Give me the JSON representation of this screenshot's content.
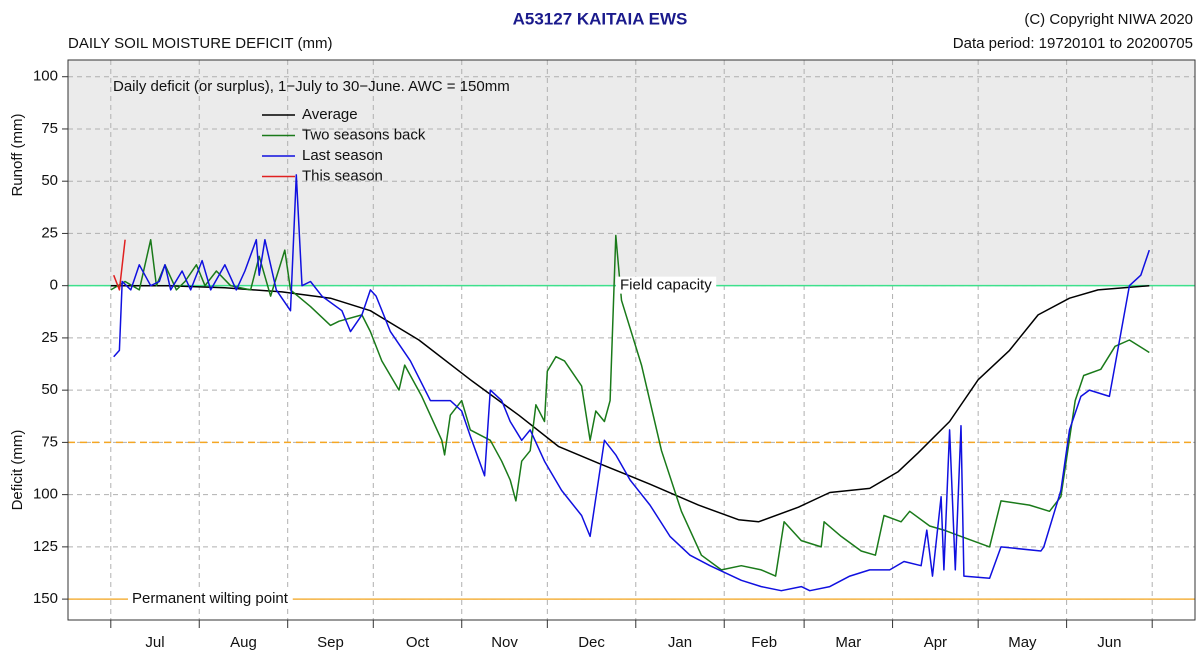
{
  "chart_data": {
    "type": "line",
    "title": "A53127  KAITAIA EWS",
    "subtitle": "DAILY SOIL MOISTURE DEFICIT (mm)",
    "copyright": "(C) Copyright NIWA  2020",
    "data_period": "Data period:  19720101  to  20200705",
    "note": "Daily deficit (or surplus), 1−July to 30−June.  AWC = 150mm",
    "y_label_top": "Runoff (mm)",
    "y_label_bottom": "Deficit (mm)",
    "xlim": [
      -15,
      380
    ],
    "xticks": [
      0,
      31,
      62,
      92,
      123,
      153,
      184,
      215,
      243,
      274,
      304,
      335,
      365
    ],
    "months": [
      "Jul",
      "Aug",
      "Sep",
      "Oct",
      "Nov",
      "Dec",
      "Jan",
      "Feb",
      "Mar",
      "Apr",
      "May",
      "Jun"
    ],
    "ylim": [
      -160,
      108
    ],
    "yticks": [
      100,
      75,
      50,
      25,
      0,
      {
        "value": -25,
        "label": "25"
      },
      {
        "value": -50,
        "label": "50"
      },
      {
        "value": -75,
        "label": "75"
      },
      {
        "value": -100,
        "label": "100"
      },
      {
        "value": -125,
        "label": "125"
      },
      {
        "value": -150,
        "label": "150"
      }
    ],
    "grid": true,
    "runoff_color": "#ebebeb",
    "reference_lines": [
      {
        "value": 0,
        "label": "Field capacity",
        "color": "#3de08c",
        "style": "solid"
      },
      {
        "value": -75,
        "color": "#f5a623",
        "style": "dashed"
      },
      {
        "value": -150,
        "label": "Permanent wilting point",
        "color": "#f5b342",
        "style": "solid"
      }
    ],
    "series": [
      {
        "name": "Average",
        "color": "#000000",
        "x": [
          0,
          20,
          40,
          60,
          77,
          91,
          108,
          126,
          143,
          157,
          171,
          189,
          206,
          220,
          227,
          241,
          252,
          266,
          276,
          283,
          294,
          304,
          315,
          325,
          336,
          346,
          364
        ],
        "values": [
          0,
          0,
          -1,
          -3,
          -6,
          -12,
          -26,
          -45,
          -62,
          -77,
          -85,
          -95,
          -105,
          -112,
          -113,
          -106,
          -99,
          -97,
          -89,
          -80,
          -65,
          -45,
          -31,
          -14,
          -6,
          -2,
          0
        ]
      },
      {
        "name": "Two seasons back",
        "color": "#1a7a1a",
        "x": [
          0,
          5,
          10,
          14,
          16,
          19,
          23,
          26,
          30,
          33,
          37,
          42,
          49,
          52,
          56,
          61,
          63,
          70,
          77,
          80,
          88,
          91,
          95,
          101,
          103,
          109,
          116,
          117,
          119,
          123,
          126,
          133,
          137,
          140,
          142,
          144,
          147,
          149,
          152,
          153,
          156,
          159,
          165,
          168,
          170,
          173,
          175,
          177,
          179,
          186,
          193,
          200,
          207,
          214,
          221,
          228,
          233,
          236,
          242,
          249,
          250,
          256,
          263,
          268,
          271,
          277,
          280,
          287,
          292,
          298,
          308,
          312,
          322,
          329,
          333,
          338,
          341,
          347,
          352,
          357,
          364
        ],
        "values": [
          -2,
          2,
          -2,
          22,
          0,
          10,
          -2,
          2,
          10,
          0,
          7,
          0,
          -2,
          14,
          -5,
          17,
          -2,
          -10,
          -19,
          -17,
          -14,
          -22,
          -36,
          -50,
          -38,
          -53,
          -74,
          -81,
          -62,
          -55,
          -69,
          -74,
          -84,
          -93,
          -103,
          -84,
          -79,
          -57,
          -65,
          -41,
          -34,
          -36,
          -48,
          -74,
          -60,
          -65,
          -55,
          24,
          -7,
          -38,
          -79,
          -108,
          -129,
          -136,
          -134,
          -136,
          -139,
          -113,
          -122,
          -125,
          -113,
          -120,
          -127,
          -129,
          -110,
          -113,
          -108,
          -115,
          -117,
          -120,
          -125,
          -103,
          -105,
          -108,
          -101,
          -55,
          -43,
          -40,
          -29,
          -26,
          -32
        ]
      },
      {
        "name": "Last season",
        "color": "#1010e0",
        "x": [
          1,
          3,
          4,
          7,
          10,
          14,
          17,
          19,
          21,
          25,
          28,
          32,
          35,
          40,
          44,
          47,
          51,
          52,
          54,
          58,
          63,
          65,
          67,
          70,
          74,
          81,
          84,
          88,
          91,
          93,
          98,
          105,
          112,
          119,
          123,
          126,
          131,
          133,
          137,
          140,
          144,
          147,
          152,
          158,
          165,
          168,
          173,
          177,
          182,
          189,
          196,
          203,
          210,
          221,
          228,
          235,
          242,
          245,
          252,
          259,
          266,
          273,
          278,
          284,
          286,
          288,
          291,
          292,
          294,
          296,
          298,
          299,
          308,
          312,
          326,
          327,
          333,
          336,
          340,
          343,
          350,
          357,
          361,
          364
        ],
        "values": [
          -34,
          -31,
          2,
          -2,
          10,
          0,
          2,
          10,
          -2,
          7,
          -2,
          12,
          -2,
          10,
          -2,
          7,
          22,
          5,
          22,
          -2,
          -12,
          53,
          0,
          2,
          -5,
          -12,
          -22,
          -14,
          -2,
          -5,
          -22,
          -36,
          -55,
          -55,
          -60,
          -72,
          -91,
          -50,
          -55,
          -65,
          -74,
          -69,
          -84,
          -98,
          -110,
          -120,
          -74,
          -81,
          -93,
          -105,
          -120,
          -129,
          -134,
          -141,
          -144,
          -146,
          -144,
          -146,
          -144,
          -139,
          -136,
          -136,
          -132,
          -134,
          -117,
          -139,
          -101,
          -136,
          -69,
          -136,
          -67,
          -139,
          -140,
          -125,
          -127,
          -125,
          -98,
          -69,
          -53,
          -50,
          -53,
          0,
          5,
          17
        ]
      },
      {
        "name": "This season",
        "color": "#e02020",
        "x": [
          1,
          3,
          5
        ],
        "values": [
          5,
          -2,
          22
        ]
      }
    ]
  }
}
